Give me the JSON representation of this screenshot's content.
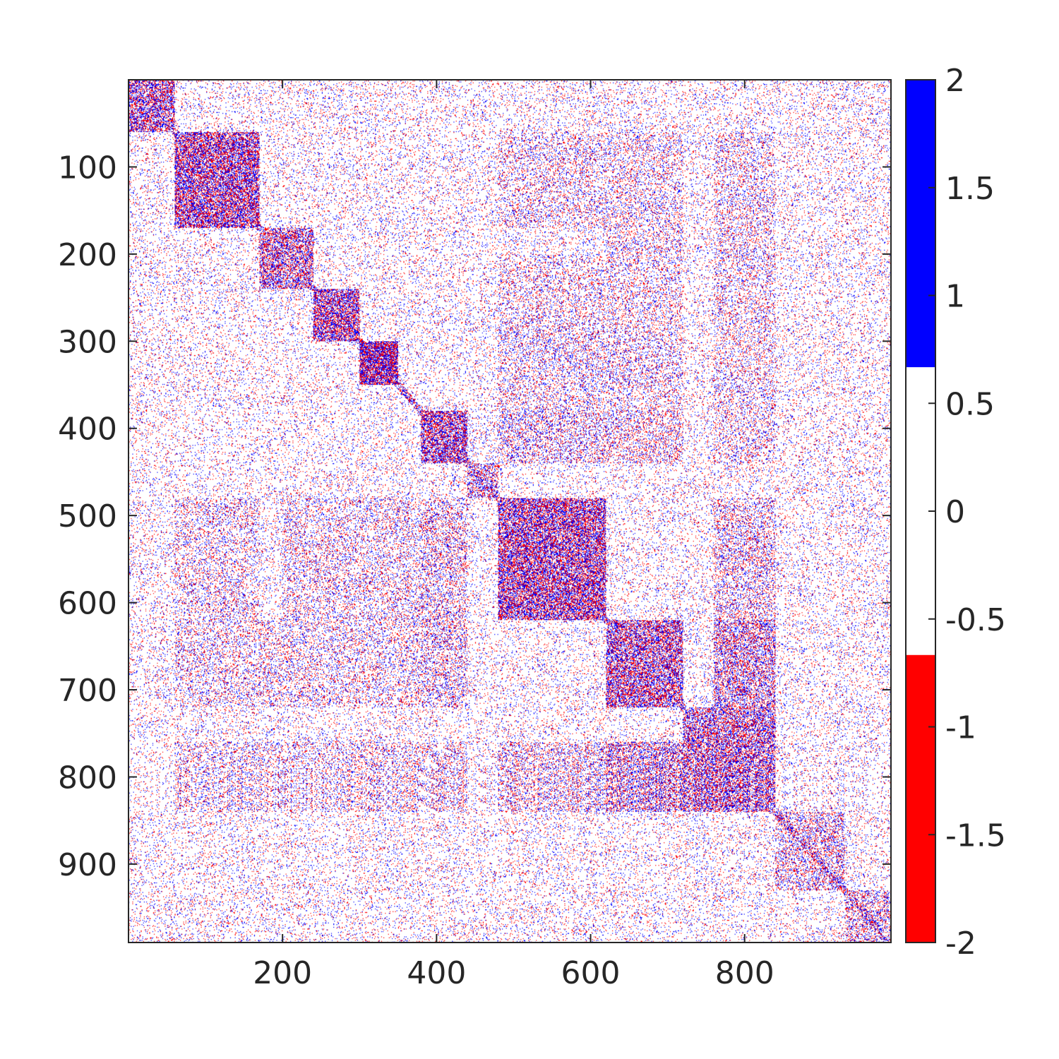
{
  "chart_data": {
    "type": "heatmap",
    "title": "",
    "xlabel": "",
    "ylabel": "",
    "matrix_size": 990,
    "xlim": [
      0,
      990
    ],
    "ylim": [
      990,
      0
    ],
    "x_ticks": [
      200,
      400,
      600,
      800
    ],
    "x_tick_labels": [
      "200",
      "400",
      "600",
      "800"
    ],
    "y_ticks": [
      100,
      200,
      300,
      400,
      500,
      600,
      700,
      800,
      900
    ],
    "y_tick_labels": [
      "100",
      "200",
      "300",
      "400",
      "500",
      "600",
      "700",
      "800",
      "900"
    ],
    "y_direction": "reversed",
    "color_limits": [
      -2,
      2
    ],
    "colorbar": {
      "placement": "right",
      "ticks": [
        2,
        1.5,
        1,
        0.5,
        0,
        -0.5,
        -1,
        -1.5,
        -2
      ],
      "tick_labels": [
        "2",
        "1.5",
        "1",
        "0.5",
        "0",
        "-0.5",
        "-1",
        "-1.5",
        "-2"
      ],
      "segments": [
        {
          "from": 0.667,
          "to": 2,
          "color": "#0000ff"
        },
        {
          "from": -0.667,
          "to": 0.667,
          "color": "#ffffff"
        },
        {
          "from": -2,
          "to": -0.667,
          "color": "#ff0000"
        }
      ]
    },
    "value_colors": {
      "positive": "#0000ff",
      "neutral": "#ffffff",
      "negative": "#ff0000"
    },
    "diagonal_blocks": [
      {
        "start": 0,
        "end": 60,
        "density": 0.55
      },
      {
        "start": 60,
        "end": 170,
        "density": 0.6
      },
      {
        "start": 170,
        "end": 240,
        "density": 0.5
      },
      {
        "start": 240,
        "end": 300,
        "density": 0.6
      },
      {
        "start": 300,
        "end": 350,
        "density": 0.75
      },
      {
        "start": 380,
        "end": 440,
        "density": 0.6
      },
      {
        "start": 440,
        "end": 480,
        "density": 0.4
      },
      {
        "start": 480,
        "end": 620,
        "density": 0.6
      },
      {
        "start": 620,
        "end": 720,
        "density": 0.55
      },
      {
        "start": 720,
        "end": 840,
        "density": 0.5
      },
      {
        "start": 840,
        "end": 930,
        "density": 0.3
      },
      {
        "start": 930,
        "end": 990,
        "density": 0.3
      }
    ],
    "off_diagonal_clusters": [
      {
        "rows": [
          60,
          170
        ],
        "cols": [
          480,
          620
        ],
        "density": 0.2
      },
      {
        "rows": [
          60,
          170
        ],
        "cols": [
          620,
          720
        ],
        "density": 0.2
      },
      {
        "rows": [
          60,
          170
        ],
        "cols": [
          760,
          840
        ],
        "density": 0.2
      },
      {
        "rows": [
          300,
          350
        ],
        "cols": [
          480,
          720
        ],
        "density": 0.2
      },
      {
        "rows": [
          380,
          440
        ],
        "cols": [
          480,
          720
        ],
        "density": 0.25
      },
      {
        "rows": [
          380,
          440
        ],
        "cols": [
          760,
          840
        ],
        "density": 0.2
      },
      {
        "rows": [
          480,
          620
        ],
        "cols": [
          200,
          440
        ],
        "density": 0.2
      },
      {
        "rows": [
          620,
          720
        ],
        "cols": [
          100,
          440
        ],
        "density": 0.2
      },
      {
        "rows": [
          620,
          720
        ],
        "cols": [
          760,
          840
        ],
        "density": 0.4
      },
      {
        "rows": [
          760,
          840
        ],
        "cols": [
          100,
          440
        ],
        "density": 0.2
      },
      {
        "rows": [
          760,
          840
        ],
        "cols": [
          480,
          720
        ],
        "density": 0.25
      }
    ],
    "background_density": 0.1,
    "grid": false
  }
}
